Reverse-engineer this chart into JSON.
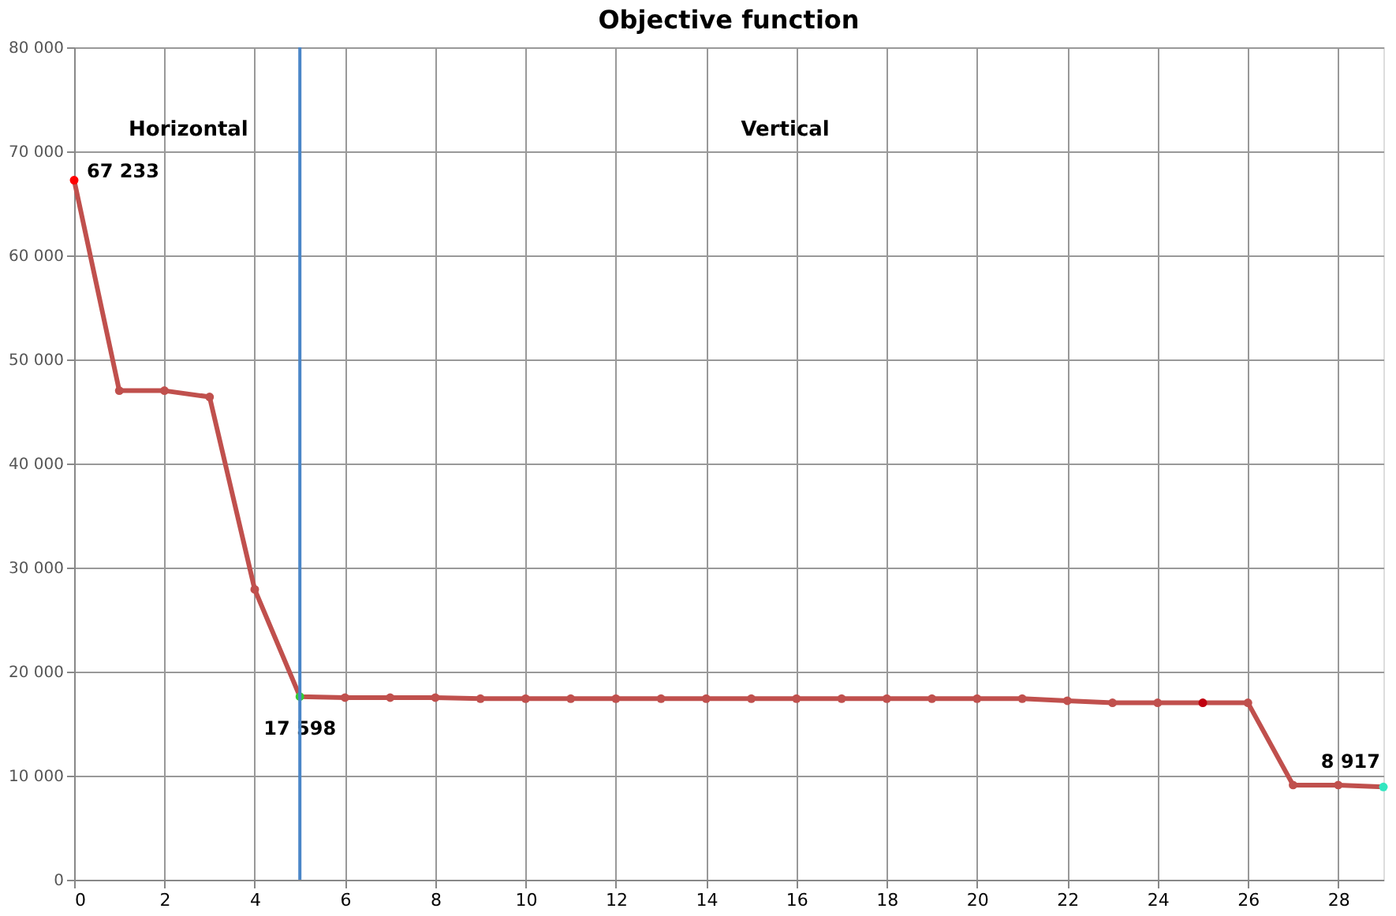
{
  "chart_data": {
    "type": "line",
    "title": "Objective function",
    "x": [
      0,
      1,
      2,
      3,
      4,
      5,
      6,
      7,
      8,
      9,
      10,
      11,
      12,
      13,
      14,
      15,
      16,
      17,
      18,
      19,
      20,
      21,
      22,
      23,
      24,
      25,
      26,
      27,
      28,
      29
    ],
    "series": [
      {
        "color": "#c0504d",
        "values": [
          67233,
          47000,
          47000,
          46400,
          27900,
          17598,
          17500,
          17500,
          17500,
          17400,
          17400,
          17400,
          17400,
          17400,
          17400,
          17400,
          17400,
          17400,
          17400,
          17400,
          17400,
          17400,
          17200,
          17000,
          17000,
          17000,
          17000,
          9100,
          9100,
          8917
        ],
        "colors": [
          "#ff0000",
          "#c0504d",
          "#c0504d",
          "#c0504d",
          "#c0504d",
          "#33cc33",
          "#c0504d",
          "#c0504d",
          "#c0504d",
          "#c0504d",
          "#c0504d",
          "#c0504d",
          "#c0504d",
          "#c0504d",
          "#c0504d",
          "#c0504d",
          "#c0504d",
          "#c0504d",
          "#c0504d",
          "#c0504d",
          "#c0504d",
          "#c0504d",
          "#c0504d",
          "#c0504d",
          "#c0504d",
          "#c0000f",
          "#c0504d",
          "#c0504d",
          "#c0504d",
          "#33e6c0"
        ],
        "value_labels": [
          "67 233",
          null,
          null,
          null,
          null,
          "17 598",
          null,
          null,
          null,
          null,
          null,
          null,
          null,
          null,
          null,
          null,
          null,
          null,
          null,
          null,
          null,
          null,
          null,
          null,
          null,
          null,
          null,
          null,
          null,
          "8 917"
        ]
      }
    ],
    "xlim": [
      0,
      29
    ],
    "xticks": [
      0,
      2,
      4,
      6,
      8,
      10,
      12,
      14,
      16,
      18,
      20,
      22,
      24,
      26,
      28
    ],
    "ylim": [
      0,
      80000
    ],
    "yticks": [
      {
        "value": 0,
        "label": "0"
      },
      {
        "value": 10000,
        "label": "10 000"
      },
      {
        "value": 20000,
        "label": "20 000"
      },
      {
        "value": 30000,
        "label": "30 000"
      },
      {
        "value": 40000,
        "label": "40 000"
      },
      {
        "value": 50000,
        "label": "50 000"
      },
      {
        "value": 60000,
        "label": "60 000"
      },
      {
        "value": 70000,
        "label": "70 000"
      },
      {
        "value": 80000,
        "label": "80 000"
      }
    ],
    "ref_lines": [
      {
        "axis": "x",
        "value": 5,
        "color": "#4a86c8"
      }
    ],
    "annotations": [
      "Horizontal",
      "Vertical"
    ],
    "grid": true,
    "marker": "circle",
    "line_style": "solid"
  }
}
